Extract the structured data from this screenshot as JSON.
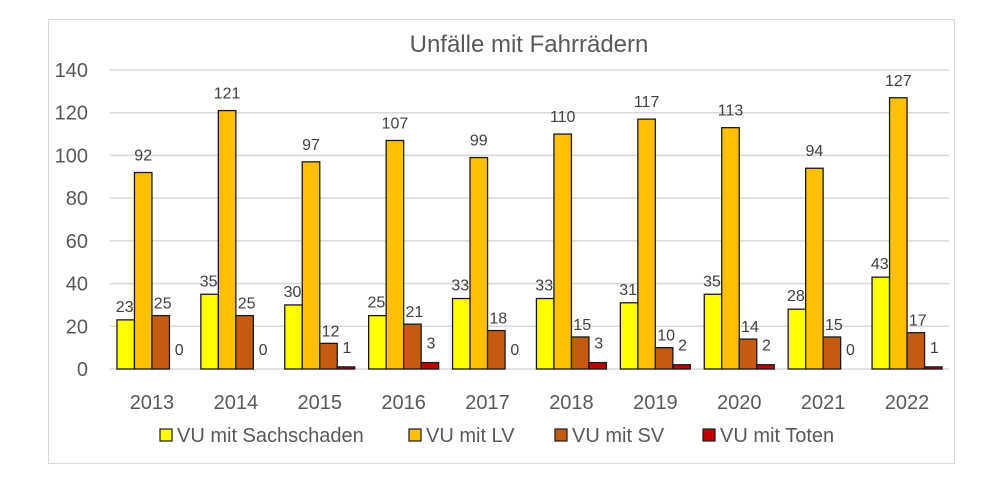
{
  "chart_data": {
    "type": "bar",
    "title": "Unfälle mit Fahrrädern",
    "xlabel": "",
    "ylabel": "",
    "ylim": [
      0,
      140
    ],
    "yticks": [
      0,
      20,
      40,
      60,
      80,
      100,
      120,
      140
    ],
    "grid": true,
    "legend_position": "bottom",
    "categories": [
      "2013",
      "2014",
      "2015",
      "2016",
      "2017",
      "2018",
      "2019",
      "2020",
      "2021",
      "2022"
    ],
    "series": [
      {
        "name": "VU mit Sachschaden",
        "color": "#FFFF00",
        "values": [
          23,
          35,
          30,
          25,
          33,
          33,
          31,
          35,
          28,
          43
        ]
      },
      {
        "name": "VU mit LV",
        "color": "#FFC000",
        "values": [
          92,
          121,
          97,
          107,
          99,
          110,
          117,
          113,
          94,
          127
        ]
      },
      {
        "name": "VU mit SV",
        "color": "#C55A11",
        "values": [
          25,
          25,
          12,
          21,
          18,
          15,
          10,
          14,
          15,
          17
        ]
      },
      {
        "name": "VU mit Toten",
        "color": "#C00000",
        "values": [
          0,
          0,
          1,
          3,
          0,
          3,
          2,
          2,
          0,
          1
        ]
      }
    ],
    "data_labels": true
  }
}
